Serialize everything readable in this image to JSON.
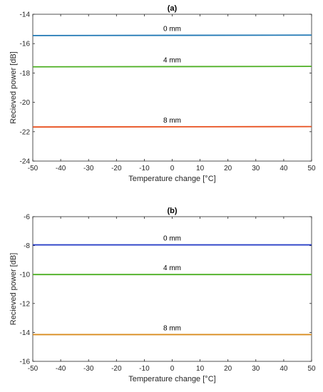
{
  "chart_data": [
    {
      "type": "line",
      "title": "(a)",
      "xlabel": "Temperature change [°C]",
      "ylabel": "Recieved power [dB]",
      "xlim": [
        -50,
        50
      ],
      "ylim": [
        -24,
        -14
      ],
      "xticks": [
        -50,
        -40,
        -30,
        -20,
        -10,
        0,
        10,
        20,
        30,
        40,
        50
      ],
      "yticks": [
        -24,
        -22,
        -20,
        -18,
        -16,
        -14
      ],
      "grid": false,
      "x": [
        -50,
        50
      ],
      "series": [
        {
          "name": "0 mm",
          "values": [
            -15.45,
            -15.42
          ],
          "color": "#1f77b4"
        },
        {
          "name": "4 mm",
          "values": [
            -17.58,
            -17.55
          ],
          "color": "#4daf23"
        },
        {
          "name": "8 mm",
          "values": [
            -21.68,
            -21.65
          ],
          "color": "#e8501f"
        }
      ]
    },
    {
      "type": "line",
      "title": "(b)",
      "xlabel": "Temperature change [°C]",
      "ylabel": "Recieved power [dB]",
      "xlim": [
        -50,
        50
      ],
      "ylim": [
        -16,
        -6
      ],
      "xticks": [
        -50,
        -40,
        -30,
        -20,
        -10,
        0,
        10,
        20,
        30,
        40,
        50
      ],
      "yticks": [
        -16,
        -14,
        -12,
        -10,
        -8,
        -6
      ],
      "grid": false,
      "x": [
        -50,
        50
      ],
      "series": [
        {
          "name": "0 mm",
          "values": [
            -7.95,
            -7.95
          ],
          "color": "#2a3fc7"
        },
        {
          "name": "4 mm",
          "values": [
            -10.0,
            -10.0
          ],
          "color": "#4daf23"
        },
        {
          "name": "8 mm",
          "values": [
            -14.15,
            -14.15
          ],
          "color": "#d98c1f"
        }
      ]
    }
  ]
}
